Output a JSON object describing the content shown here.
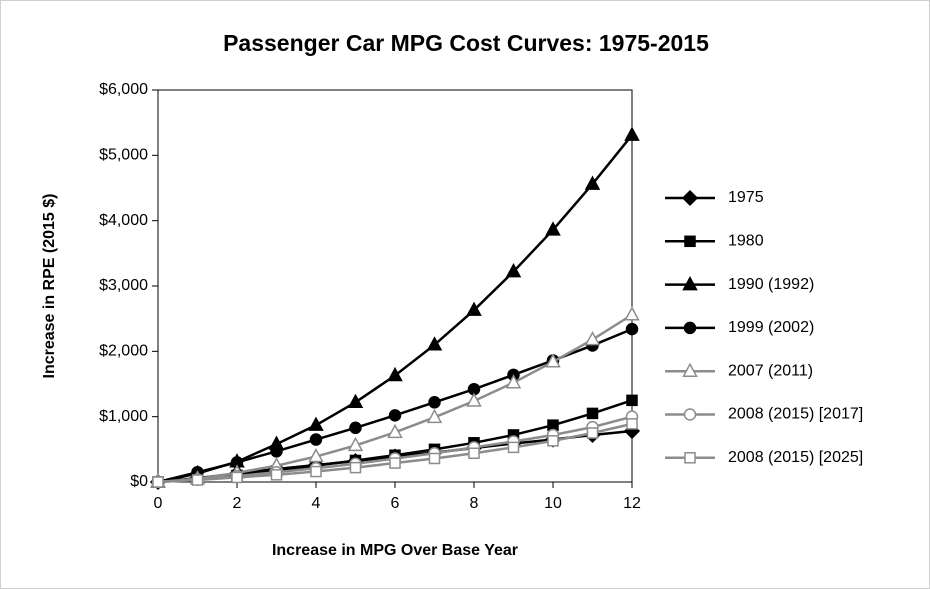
{
  "chart_data": {
    "type": "line",
    "title": "Passenger Car MPG Cost Curves: 1975-2015",
    "x_label": "Increase in MPG Over Base Year",
    "y_label": "Increase in RPE (2015 $)",
    "x": [
      0,
      1,
      2,
      3,
      4,
      5,
      6,
      7,
      8,
      9,
      10,
      11,
      12
    ],
    "xlim": [
      0,
      12
    ],
    "xticks": [
      0,
      2,
      4,
      6,
      8,
      10,
      12
    ],
    "ylim": [
      0,
      6000
    ],
    "yticks": [
      {
        "value": 0,
        "label": "$0"
      },
      {
        "value": 1000,
        "label": "$1,000"
      },
      {
        "value": 2000,
        "label": "$2,000"
      },
      {
        "value": 3000,
        "label": "$3,000"
      },
      {
        "value": 4000,
        "label": "$4,000"
      },
      {
        "value": 5000,
        "label": "$5,000"
      },
      {
        "value": 6000,
        "label": "$6,000"
      }
    ],
    "grid": false,
    "legend": "right",
    "series": [
      {
        "name": "1975",
        "color": "#000000",
        "marker": "diamond",
        "filled": true,
        "values": [
          0,
          60,
          130,
          200,
          260,
          320,
          390,
          450,
          520,
          590,
          650,
          720,
          780
        ]
      },
      {
        "name": "1980",
        "color": "#000000",
        "marker": "square",
        "filled": true,
        "values": [
          0,
          40,
          100,
          170,
          250,
          330,
          410,
          500,
          600,
          720,
          870,
          1050,
          1250
        ]
      },
      {
        "name": "1990 (1992)",
        "color": "#000000",
        "marker": "triangle",
        "filled": true,
        "values": [
          0,
          130,
          310,
          580,
          870,
          1220,
          1630,
          2100,
          2630,
          3220,
          3860,
          4560,
          5310
        ]
      },
      {
        "name": "1999 (2002)",
        "color": "#000000",
        "marker": "circle",
        "filled": true,
        "values": [
          0,
          150,
          300,
          470,
          650,
          830,
          1020,
          1220,
          1420,
          1640,
          1860,
          2090,
          2340
        ]
      },
      {
        "name": "2007 (2011)",
        "color": "#8c8c8c",
        "marker": "triangle",
        "filled": false,
        "values": [
          0,
          50,
          140,
          250,
          390,
          560,
          760,
          990,
          1240,
          1520,
          1840,
          2180,
          2560
        ]
      },
      {
        "name": "2008 (2015) [2017]",
        "color": "#8c8c8c",
        "marker": "circle",
        "filled": false,
        "values": [
          0,
          40,
          90,
          150,
          210,
          280,
          360,
          440,
          530,
          620,
          720,
          840,
          1000
        ]
      },
      {
        "name": "2008 (2015) [2025]",
        "color": "#8c8c8c",
        "marker": "square",
        "filled": false,
        "values": [
          0,
          30,
          70,
          110,
          160,
          220,
          290,
          360,
          440,
          530,
          630,
          750,
          890
        ]
      }
    ]
  }
}
